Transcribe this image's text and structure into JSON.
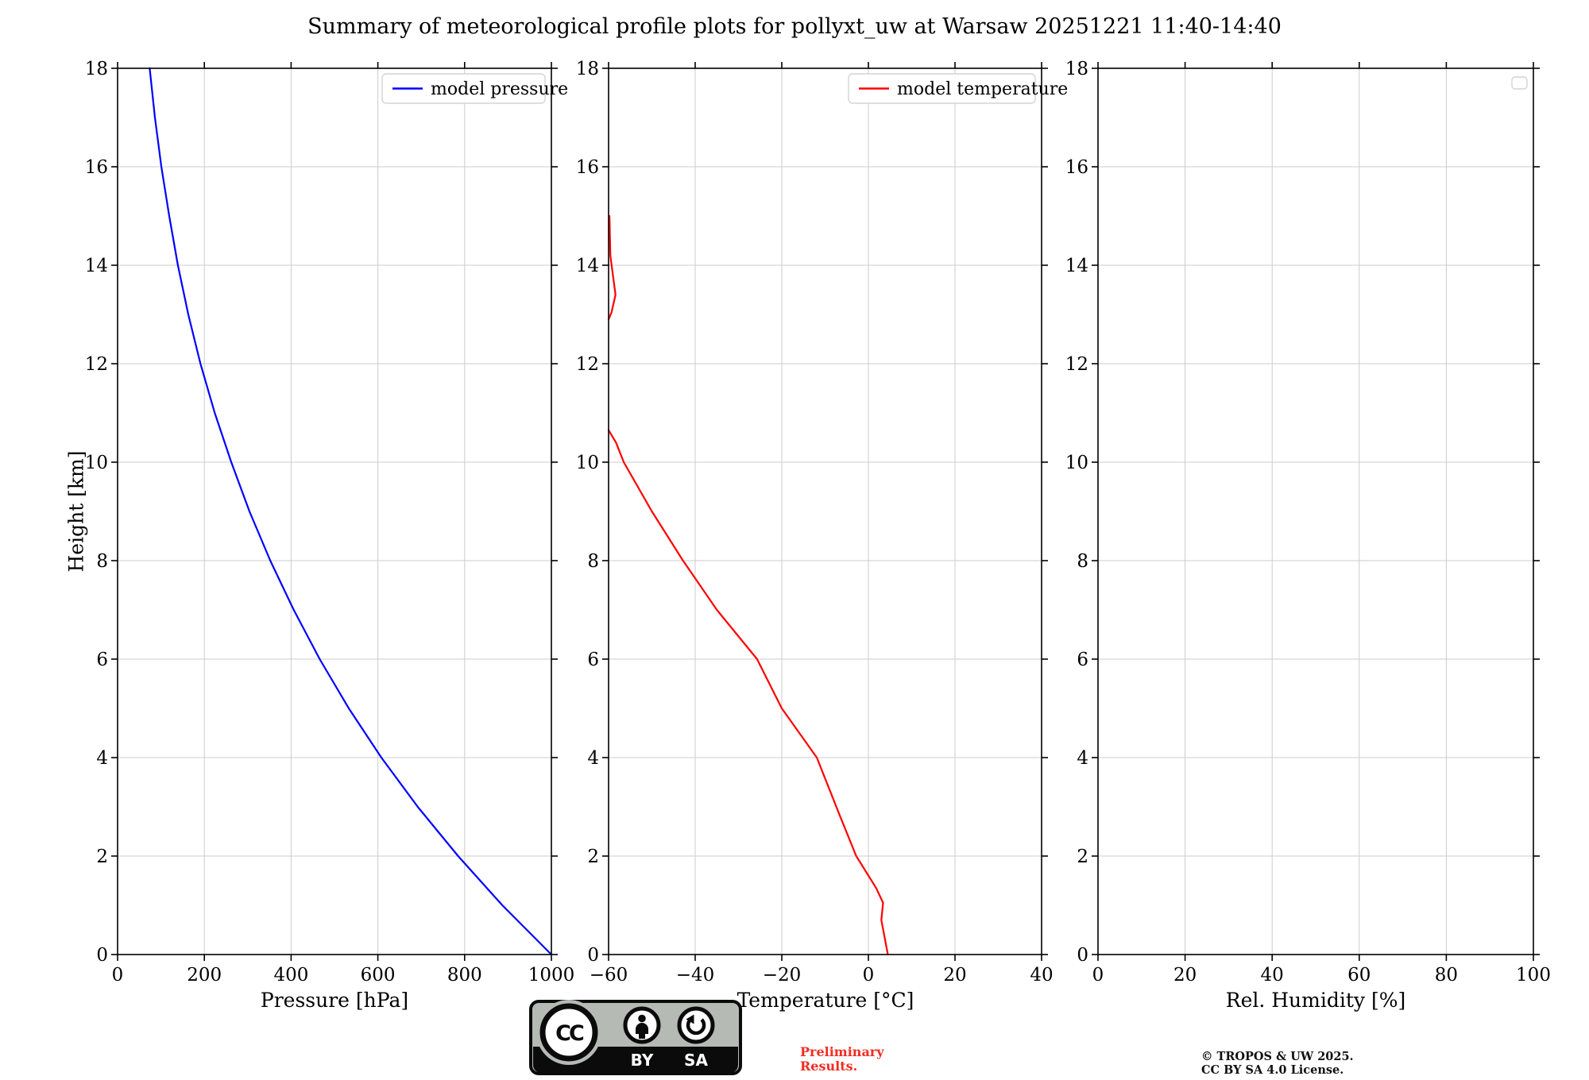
{
  "title": "Summary of meteorological profile plots for pollyxt_uw at Warsaw 20251221 11:40-14:40",
  "shared_ylabel": "Height [km]",
  "colors": {
    "pressure_line": "#0000ff",
    "temperature_line": "#ff0000",
    "grid": "#cccccc",
    "spine": "#000000",
    "legend_border": "#d4d4d4",
    "preliminary_text": "#f22c23"
  },
  "chart_data": [
    {
      "id": "pressure",
      "type": "line",
      "xlabel": "Pressure [hPa]",
      "ylabel": "Height [km]",
      "xlim": [
        0,
        1000
      ],
      "xticks": [
        0,
        200,
        400,
        600,
        800,
        1000
      ],
      "ylim": [
        0,
        18
      ],
      "yticks": [
        0,
        2,
        4,
        6,
        8,
        10,
        12,
        14,
        16,
        18
      ],
      "grid": true,
      "legend_position": "upper right",
      "legend": [
        {
          "label": "model pressure",
          "color": "#0000ff"
        }
      ],
      "series": [
        {
          "name": "model pressure",
          "color": "#0000ff",
          "points": [
            [
              1000,
              0
            ],
            [
              887,
              1
            ],
            [
              785,
              2
            ],
            [
              692,
              3
            ],
            [
              608,
              4
            ],
            [
              533,
              5
            ],
            [
              466,
              6
            ],
            [
              406,
              7
            ],
            [
              352,
              8
            ],
            [
              304,
              9
            ],
            [
              262,
              10
            ],
            [
              224,
              11
            ],
            [
              191,
              12
            ],
            [
              163,
              13
            ],
            [
              139,
              14
            ],
            [
              119,
              15
            ],
            [
              101,
              16
            ],
            [
              86,
              17
            ],
            [
              74,
              18
            ]
          ]
        }
      ]
    },
    {
      "id": "temperature",
      "type": "line",
      "xlabel": "Temperature [°C]",
      "xlim": [
        -60,
        40
      ],
      "xticks": [
        -60,
        -40,
        -20,
        0,
        20,
        40
      ],
      "ylim": [
        0,
        18
      ],
      "yticks": [
        0,
        2,
        4,
        6,
        8,
        10,
        12,
        14,
        16,
        18
      ],
      "grid": true,
      "legend_position": "upper right",
      "legend": [
        {
          "label": "model temperature",
          "color": "#ff0000"
        }
      ],
      "series": [
        {
          "name": "model temperature",
          "color": "#ff0000",
          "points": [
            [
              4.5,
              0
            ],
            [
              3.0,
              0.7
            ],
            [
              3.4,
              1.05
            ],
            [
              1.8,
              1.35
            ],
            [
              -2.8,
              2
            ],
            [
              -6.5,
              2.8
            ],
            [
              -11.9,
              4
            ],
            [
              -20,
              5
            ],
            [
              -25.7,
              6
            ],
            [
              -35,
              7
            ],
            [
              -42.8,
              8
            ],
            [
              -50,
              9
            ],
            [
              -56.5,
              10
            ],
            [
              -58.3,
              10.4
            ],
            [
              -60,
              10.65
            ],
            null,
            [
              -60,
              12.9
            ],
            [
              -59.3,
              13.05
            ],
            [
              -58.4,
              13.4
            ],
            [
              -59.6,
              14.2
            ],
            [
              -59.8,
              15
            ]
          ]
        }
      ]
    },
    {
      "id": "humidity",
      "type": "line",
      "xlabel": "Rel. Humidity [%]",
      "xlim": [
        0,
        100
      ],
      "xticks": [
        0,
        20,
        40,
        60,
        80,
        100
      ],
      "ylim": [
        0,
        18
      ],
      "yticks": [
        0,
        2,
        4,
        6,
        8,
        10,
        12,
        14,
        16,
        18
      ],
      "grid": true,
      "legend_position": "upper right",
      "legend": [],
      "series": []
    }
  ],
  "footer": {
    "license_badge": {
      "cc_label": "CC",
      "by_label": "BY",
      "sa_label": "SA"
    },
    "preliminary_note": "Preliminary\nResults.",
    "copyright_line1": "© TROPOS & UW 2025.",
    "copyright_line2": "CC BY SA 4.0 License."
  }
}
